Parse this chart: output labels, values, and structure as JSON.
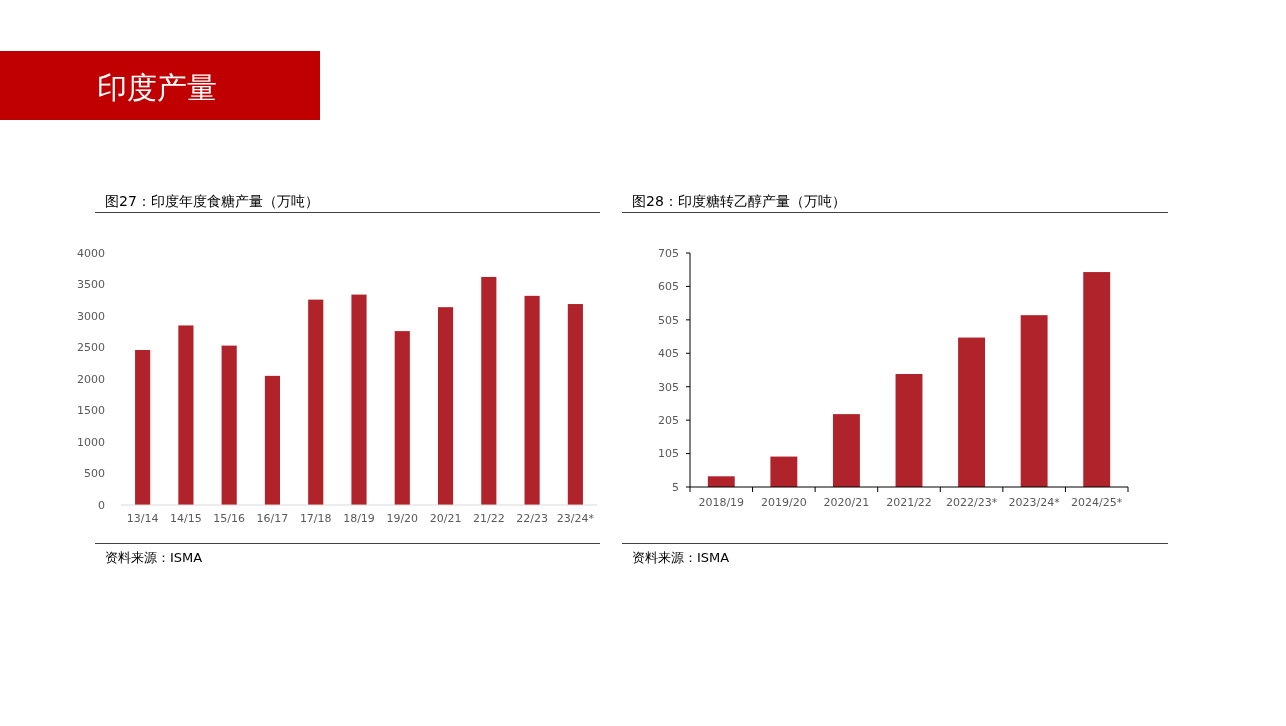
{
  "chart_data": [
    {
      "type": "other",
      "title": "印度产量"
    },
    {
      "type": "bar",
      "title": "图27：印度年度食糖产量（万吨）",
      "categories": [
        "13/14",
        "14/15",
        "15/16",
        "16/17",
        "17/18",
        "18/19",
        "19/20",
        "20/21",
        "21/22",
        "22/23",
        "23/24*"
      ],
      "values": [
        2460,
        2850,
        2530,
        2050,
        3260,
        3340,
        2760,
        3140,
        3620,
        3320,
        3190
      ],
      "color": "#b0232a",
      "ylim": [
        0,
        4000
      ],
      "yticks": [
        0,
        500,
        1000,
        1500,
        2000,
        2500,
        3000,
        3500,
        4000
      ],
      "annotations": [
        "资料来源：ISMA"
      ]
    },
    {
      "type": "bar",
      "title": "图28：印度糖转乙醇产量（万吨）",
      "categories": [
        "2018/19",
        "2019/20",
        "2020/21",
        "2021/22",
        "2022/23*",
        "2023/24*",
        "2024/25*"
      ],
      "values": [
        37,
        96,
        223,
        343,
        452,
        519,
        648
      ],
      "color": "#b0232a",
      "ylim": [
        5,
        705
      ],
      "yticks": [
        5,
        105,
        205,
        305,
        405,
        505,
        605,
        705
      ],
      "annotations": [
        "资料来源：ISMA"
      ]
    }
  ]
}
